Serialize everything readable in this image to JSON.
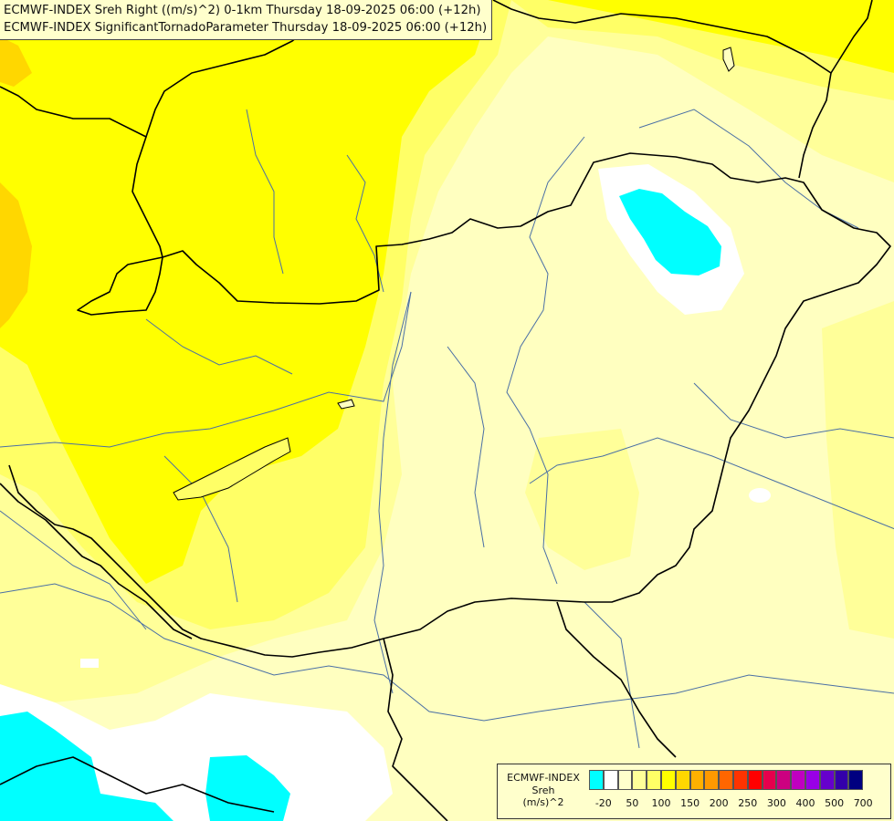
{
  "titles": {
    "line1": "ECMWF-INDEX Sreh Right ((m/s)^2) 0-1km Thursday 18-09-2025 06:00 (+12h)",
    "line2": "ECMWF-INDEX SignificantTornadoParameter Thursday 18-09-2025 06:00 (+12h)"
  },
  "legend": {
    "line1": "ECMWF-INDEX",
    "line2": "Sreh",
    "line3": "(m/s)^2",
    "ticks": [
      "-20",
      "50",
      "100",
      "150",
      "200",
      "250",
      "300",
      "400",
      "500",
      "700"
    ],
    "colors": [
      "#00ffff",
      "#ffffff",
      "#ffffcc",
      "#ffff99",
      "#ffff66",
      "#ffff00",
      "#ffd700",
      "#ffb000",
      "#ff9900",
      "#ff6600",
      "#ff3300",
      "#ff0000",
      "#e6004d",
      "#cc0080",
      "#c000c0",
      "#9900e6",
      "#6600cc",
      "#3300aa",
      "#000080"
    ]
  },
  "map_colors": {
    "cyan": "#00ffff",
    "white": "#ffffff",
    "very_pale": "#ffffcc",
    "pale": "#ffff99",
    "light": "#ffff66",
    "yellow": "#ffff00",
    "gold": "#ffd700",
    "border": "#000000",
    "river": "#4a6fa5"
  }
}
